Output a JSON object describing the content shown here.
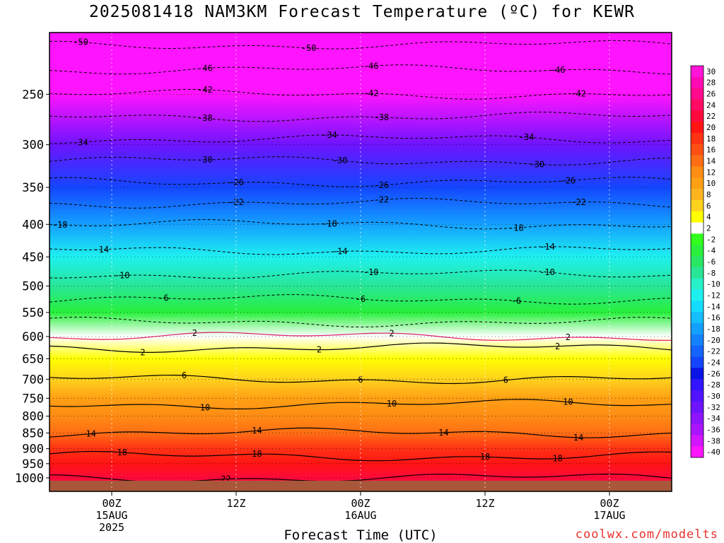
{
  "title": "2025081418 NAM3KM Forecast Temperature (ºC) for KEWR",
  "xlabel": "Forecast Time (UTC)",
  "credit": "coolwx.com/modelts",
  "colors": {
    "ground": "#a8573a",
    "freezing_line": "#e0186e",
    "scale": [
      {
        "label": "30",
        "color": "#ff14d8"
      },
      {
        "label": "28",
        "color": "#ff0ab4"
      },
      {
        "label": "26",
        "color": "#ff0a8c"
      },
      {
        "label": "24",
        "color": "#ff0a64"
      },
      {
        "label": "22",
        "color": "#ff0a3c"
      },
      {
        "label": "20",
        "color": "#ff1414"
      },
      {
        "label": "18",
        "color": "#ff3214"
      },
      {
        "label": "16",
        "color": "#ff5014"
      },
      {
        "label": "14",
        "color": "#ff6e14"
      },
      {
        "label": "12",
        "color": "#ff8c14"
      },
      {
        "label": "10",
        "color": "#ffa014"
      },
      {
        "label": "8",
        "color": "#ffb41e"
      },
      {
        "label": "6",
        "color": "#ffd21e"
      },
      {
        "label": "4",
        "color": "#ffff00"
      },
      {
        "label": "2",
        "color": "#ffffff"
      },
      {
        "label": "-2",
        "color": "#32ff1e"
      },
      {
        "label": "-4",
        "color": "#28f03c"
      },
      {
        "label": "-6",
        "color": "#28e664"
      },
      {
        "label": "-8",
        "color": "#28e696"
      },
      {
        "label": "-10",
        "color": "#28f0c8"
      },
      {
        "label": "-12",
        "color": "#1ef0f0"
      },
      {
        "label": "-14",
        "color": "#14dcff"
      },
      {
        "label": "-16",
        "color": "#14beff"
      },
      {
        "label": "-18",
        "color": "#14a0ff"
      },
      {
        "label": "-20",
        "color": "#1482ff"
      },
      {
        "label": "-22",
        "color": "#1464ff"
      },
      {
        "label": "-24",
        "color": "#1446ff"
      },
      {
        "label": "-26",
        "color": "#0a14e6"
      },
      {
        "label": "-28",
        "color": "#3214ff"
      },
      {
        "label": "-30",
        "color": "#5014ff"
      },
      {
        "label": "-32",
        "color": "#6e14ff"
      },
      {
        "label": "-34",
        "color": "#8c14ff"
      },
      {
        "label": "-36",
        "color": "#aa14ff"
      },
      {
        "label": "-38",
        "color": "#d214ff"
      },
      {
        "label": "-40",
        "color": "#ff14ff"
      }
    ]
  },
  "chart_data": {
    "type": "heatmap",
    "title": "2025081418 NAM3KM Forecast Temperature (ºC) for KEWR",
    "xlabel": "Forecast Time (UTC)",
    "ylabel": "",
    "x_range_hours": [
      -6,
      54
    ],
    "y_scale": "log",
    "ylim": [
      1050,
      200
    ],
    "x_ticks": [
      {
        "hour": 0,
        "label": "00Z",
        "date": "15AUG",
        "year": "2025"
      },
      {
        "hour": 12,
        "label": "12Z",
        "date": "",
        "year": ""
      },
      {
        "hour": 24,
        "label": "00Z",
        "date": "16AUG",
        "year": ""
      },
      {
        "hour": 36,
        "label": "12Z",
        "date": "",
        "year": ""
      },
      {
        "hour": 48,
        "label": "00Z",
        "date": "17AUG",
        "year": ""
      }
    ],
    "y_ticks": [
      "250",
      "300",
      "350",
      "400",
      "450",
      "500",
      "550",
      "600",
      "650",
      "700",
      "750",
      "800",
      "850",
      "900",
      "950",
      "1000"
    ],
    "grid": true,
    "profile_pressure_hPa": [
      1000,
      950,
      900,
      850,
      800,
      750,
      700,
      650,
      600,
      550,
      500,
      450,
      400,
      350,
      300,
      250,
      200
    ],
    "profile_temperature_C": [
      22,
      19,
      17,
      14,
      12,
      9,
      6,
      3,
      1,
      -4,
      -8,
      -13,
      -18,
      -25,
      -33,
      -42,
      -52
    ],
    "contours": [
      {
        "level": "-50",
        "label_hours": [
          -3,
          19
        ]
      },
      {
        "level": "-46",
        "label_hours": [
          9,
          25,
          43
        ]
      },
      {
        "level": "-42",
        "label_hours": [
          9,
          25,
          45
        ]
      },
      {
        "level": "-38",
        "label_hours": [
          9,
          26
        ]
      },
      {
        "level": "-34",
        "label_hours": [
          -3,
          21,
          40
        ]
      },
      {
        "level": "-30",
        "label_hours": [
          9,
          22,
          41
        ]
      },
      {
        "level": "-26",
        "label_hours": [
          12,
          26,
          44
        ]
      },
      {
        "level": "-22",
        "label_hours": [
          12,
          26,
          45
        ]
      },
      {
        "level": "-18",
        "label_hours": [
          -5,
          21,
          39
        ]
      },
      {
        "level": "-14",
        "label_hours": [
          -1,
          22,
          42
        ]
      },
      {
        "level": "-10",
        "label_hours": [
          1,
          25,
          42
        ]
      },
      {
        "level": "-6",
        "label_hours": [
          5,
          24,
          39
        ]
      },
      {
        "level": "-2",
        "label_hours": []
      },
      {
        "level": "2",
        "label_hours": [
          3,
          20,
          43
        ]
      },
      {
        "level": "2",
        "label_hours": [
          8,
          27,
          44
        ]
      },
      {
        "level": "6",
        "label_hours": [
          7,
          24,
          38
        ]
      },
      {
        "level": "10",
        "label_hours": [
          9,
          27,
          44
        ]
      },
      {
        "level": "14",
        "label_hours": [
          -2,
          14,
          32,
          45
        ]
      },
      {
        "level": "18",
        "label_hours": [
          1,
          14,
          36,
          43
        ]
      },
      {
        "level": "22",
        "label_hours": [
          11
        ]
      }
    ]
  }
}
